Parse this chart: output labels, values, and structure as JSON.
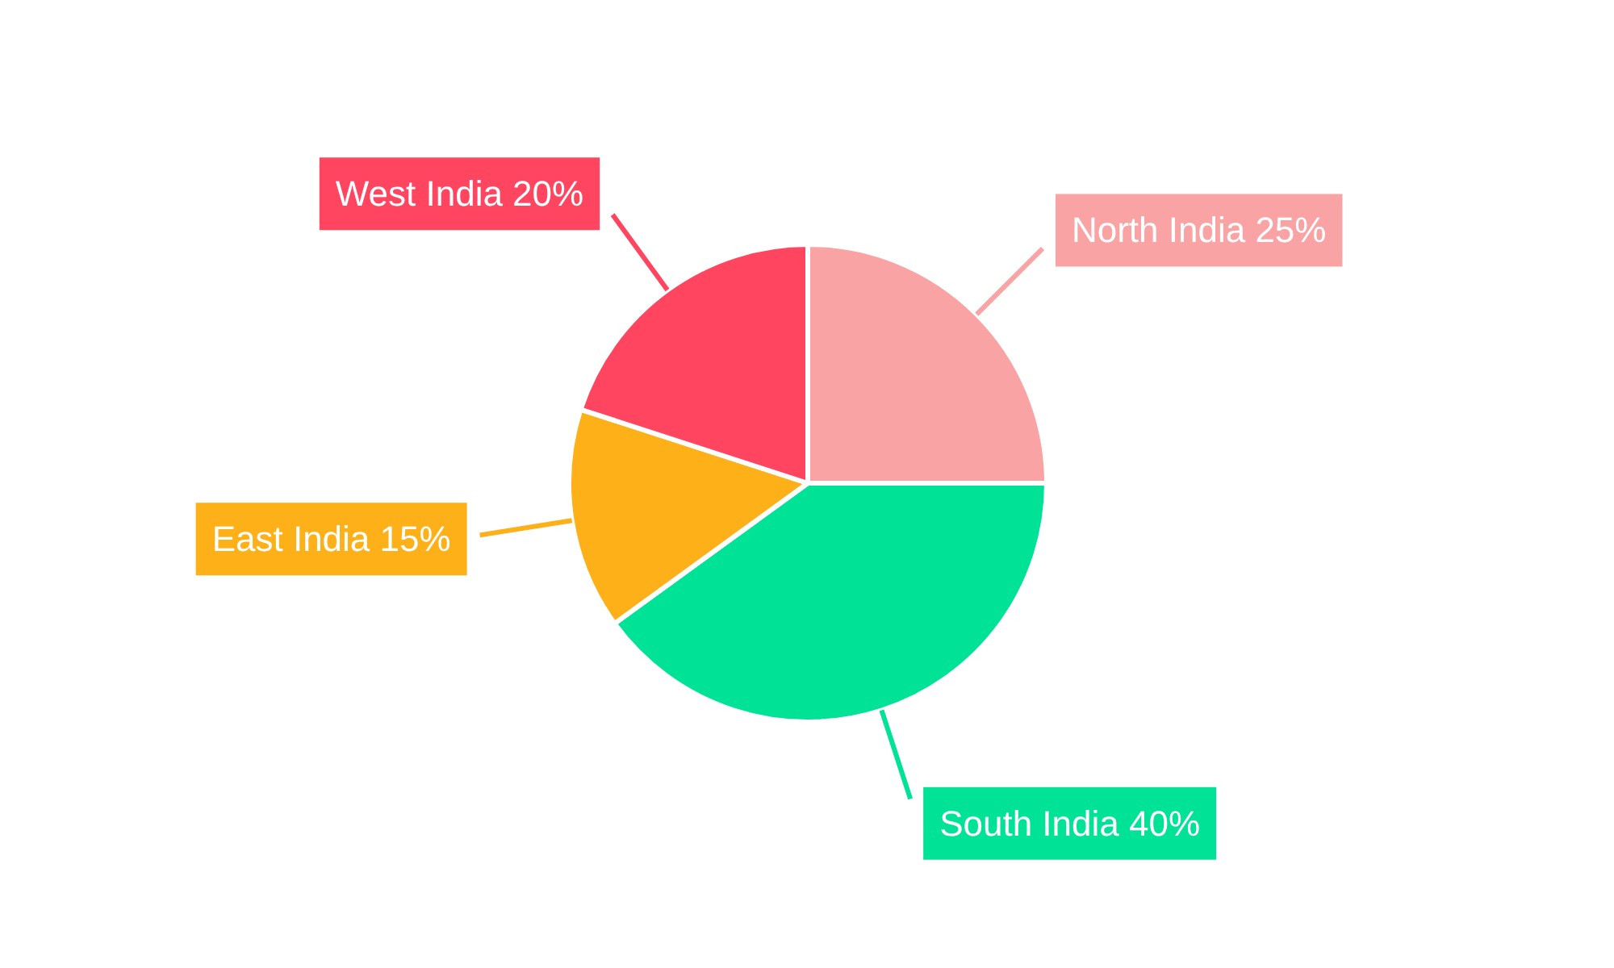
{
  "chart_data": {
    "type": "pie",
    "categories": [
      "North India",
      "South India",
      "East India",
      "West India"
    ],
    "values": [
      25,
      40,
      15,
      20
    ],
    "colors": [
      "#f9a3a4",
      "#00e396",
      "#feb019",
      "#ff4560"
    ],
    "value_labels": [
      "25%",
      "40%",
      "15%",
      "20%"
    ]
  }
}
